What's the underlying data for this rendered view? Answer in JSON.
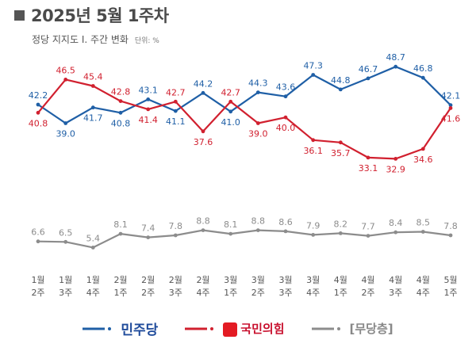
{
  "title": "2025년 5월 1주차",
  "subtitle": "정당 지지도 Ⅰ. 주간 변화",
  "unit_label": "단위: %",
  "colors": {
    "dmj": "#1f5fa6",
    "ppp": "#d1202f",
    "none": "#8c8c8c"
  },
  "legend": {
    "dmj": "민주당",
    "ppp": "국민의힘",
    "none": "[무당층]"
  },
  "chart_data": {
    "type": "line",
    "categories": [
      [
        "1월",
        "2주"
      ],
      [
        "1월",
        "3주"
      ],
      [
        "1월",
        "4주"
      ],
      [
        "2월",
        "1주"
      ],
      [
        "2월",
        "2주"
      ],
      [
        "2월",
        "3주"
      ],
      [
        "2월",
        "4주"
      ],
      [
        "3월",
        "1주"
      ],
      [
        "3월",
        "2주"
      ],
      [
        "3월",
        "3주"
      ],
      [
        "3월",
        "4주"
      ],
      [
        "4월",
        "1주"
      ],
      [
        "4월",
        "2주"
      ],
      [
        "4월",
        "3주"
      ],
      [
        "4월",
        "4주"
      ],
      [
        "5월",
        "1주"
      ]
    ],
    "series": [
      {
        "key": "dmj",
        "name": "민주당",
        "values": [
          42.2,
          39.0,
          41.7,
          40.8,
          43.1,
          41.1,
          44.2,
          41.0,
          44.3,
          43.6,
          47.3,
          44.8,
          46.7,
          48.7,
          46.8,
          42.1
        ]
      },
      {
        "key": "ppp",
        "name": "국민의힘",
        "values": [
          40.8,
          46.5,
          45.4,
          42.8,
          41.4,
          42.7,
          37.6,
          42.7,
          39.0,
          40.0,
          36.1,
          35.7,
          33.1,
          32.9,
          34.6,
          41.6
        ]
      },
      {
        "key": "none",
        "name": "[무당층]",
        "values": [
          6.6,
          6.5,
          5.4,
          8.1,
          7.4,
          7.8,
          8.8,
          8.1,
          8.8,
          8.6,
          7.9,
          8.2,
          7.7,
          8.4,
          8.5,
          7.8
        ]
      }
    ],
    "label_positions": {
      "dmj": [
        "above",
        "below",
        "below",
        "below",
        "above",
        "below",
        "above",
        "below",
        "above",
        "above",
        "above",
        "above",
        "above",
        "above",
        "above",
        "above"
      ],
      "ppp": [
        "below",
        "above",
        "above",
        "above",
        "below",
        "above",
        "below",
        "above",
        "below",
        "below",
        "below",
        "below",
        "below",
        "below",
        "below",
        "below"
      ],
      "none": [
        "above",
        "above",
        "above",
        "above",
        "above",
        "above",
        "above",
        "above",
        "above",
        "above",
        "above",
        "above",
        "above",
        "above",
        "above",
        "above"
      ]
    }
  }
}
